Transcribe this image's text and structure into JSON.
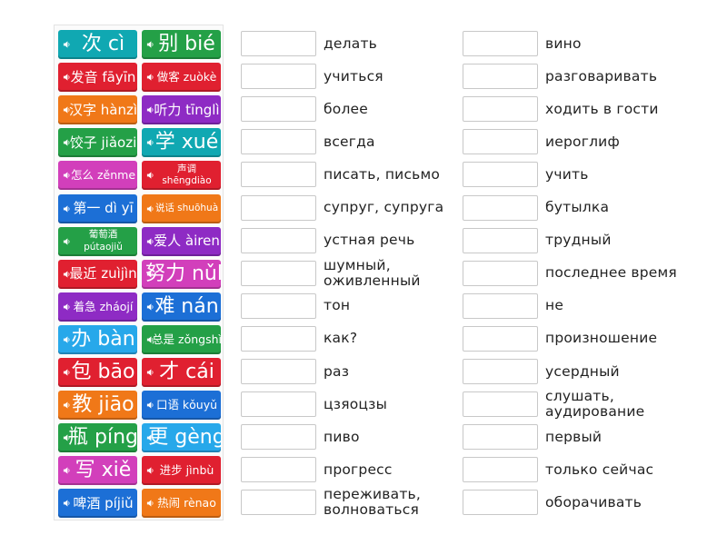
{
  "colors": {
    "blue": "#1c6fd6",
    "red": "#e02030",
    "orange": "#f07818",
    "purple": "#8e2bc4",
    "green": "#24a047",
    "pink": "#d23fbb",
    "teal": "#10a8b2",
    "sky": "#27a8ea"
  },
  "icons": {
    "tile_speaker": "speaker-icon"
  },
  "tiles": [
    {
      "text": "次 cì",
      "color": "teal",
      "size": "l"
    },
    {
      "text": "别 bié",
      "color": "green",
      "size": "l"
    },
    {
      "text": "发音 fāyīn",
      "color": "red",
      "size": "m"
    },
    {
      "text": "做客 zuòkè",
      "color": "red",
      "size": "s"
    },
    {
      "text": "汉字 hànzì",
      "color": "orange",
      "size": "m"
    },
    {
      "text": "听力 tīnglì",
      "color": "purple",
      "size": "m"
    },
    {
      "text": "饺子 jiǎozi",
      "color": "green",
      "size": "m"
    },
    {
      "text": "学 xué",
      "color": "teal",
      "size": "l"
    },
    {
      "text": "怎么 zěnme",
      "color": "pink",
      "size": "s"
    },
    {
      "text": "声调 shēngdiào",
      "color": "red",
      "size": "w"
    },
    {
      "text": "第一 dì yī",
      "color": "blue",
      "size": "m"
    },
    {
      "text": "说话 shuōhuà",
      "color": "orange",
      "size": "w"
    },
    {
      "text": "葡萄酒 pútaojiǔ",
      "color": "green",
      "size": "w"
    },
    {
      "text": "爱人 àiren",
      "color": "purple",
      "size": "m"
    },
    {
      "text": "最近 zuìjìn",
      "color": "red",
      "size": "m"
    },
    {
      "text": "努力 nǔlì",
      "color": "pink",
      "size": "l"
    },
    {
      "text": "着急 zháojí",
      "color": "purple",
      "size": "s"
    },
    {
      "text": "难 nán",
      "color": "blue",
      "size": "l"
    },
    {
      "text": "办 bàn",
      "color": "sky",
      "size": "l"
    },
    {
      "text": "总是 zǒngshì",
      "color": "green",
      "size": "s"
    },
    {
      "text": "包 bāo",
      "color": "red",
      "size": "l"
    },
    {
      "text": "才 cái",
      "color": "red",
      "size": "l"
    },
    {
      "text": "教 jiāo",
      "color": "orange",
      "size": "l"
    },
    {
      "text": "口语 kǒuyǔ",
      "color": "blue",
      "size": "s"
    },
    {
      "text": "瓶 píng",
      "color": "green",
      "size": "l"
    },
    {
      "text": "更 gèng",
      "color": "sky",
      "size": "l"
    },
    {
      "text": "写 xiě",
      "color": "pink",
      "size": "l"
    },
    {
      "text": "进步 jìnbù",
      "color": "red",
      "size": "s"
    },
    {
      "text": "啤酒 píjiǔ",
      "color": "blue",
      "size": "m"
    },
    {
      "text": "热闹 rènao",
      "color": "orange",
      "size": "s"
    }
  ],
  "rows": [
    {
      "left": "делать",
      "right": "вино"
    },
    {
      "left": "учиться",
      "right": "разговаривать"
    },
    {
      "left": "более",
      "right": "ходить в гости"
    },
    {
      "left": "всегда",
      "right": "иероглиф"
    },
    {
      "left": "писать, письмо",
      "right": "учить"
    },
    {
      "left": "супруг, супруга",
      "right": "бутылка"
    },
    {
      "left": "устная речь",
      "right": "трудный"
    },
    {
      "left": "шумный, оживленный",
      "right": "последнее время"
    },
    {
      "left": "тон",
      "right": "не"
    },
    {
      "left": "как?",
      "right": "произношение"
    },
    {
      "left": "раз",
      "right": "усердный"
    },
    {
      "left": "цзяоцзы",
      "right": "слушать, аудирование"
    },
    {
      "left": "пиво",
      "right": "первый"
    },
    {
      "left": "прогресс",
      "right": "только сейчас"
    },
    {
      "left": "переживать, волноваться",
      "right": "оборачивать"
    }
  ]
}
